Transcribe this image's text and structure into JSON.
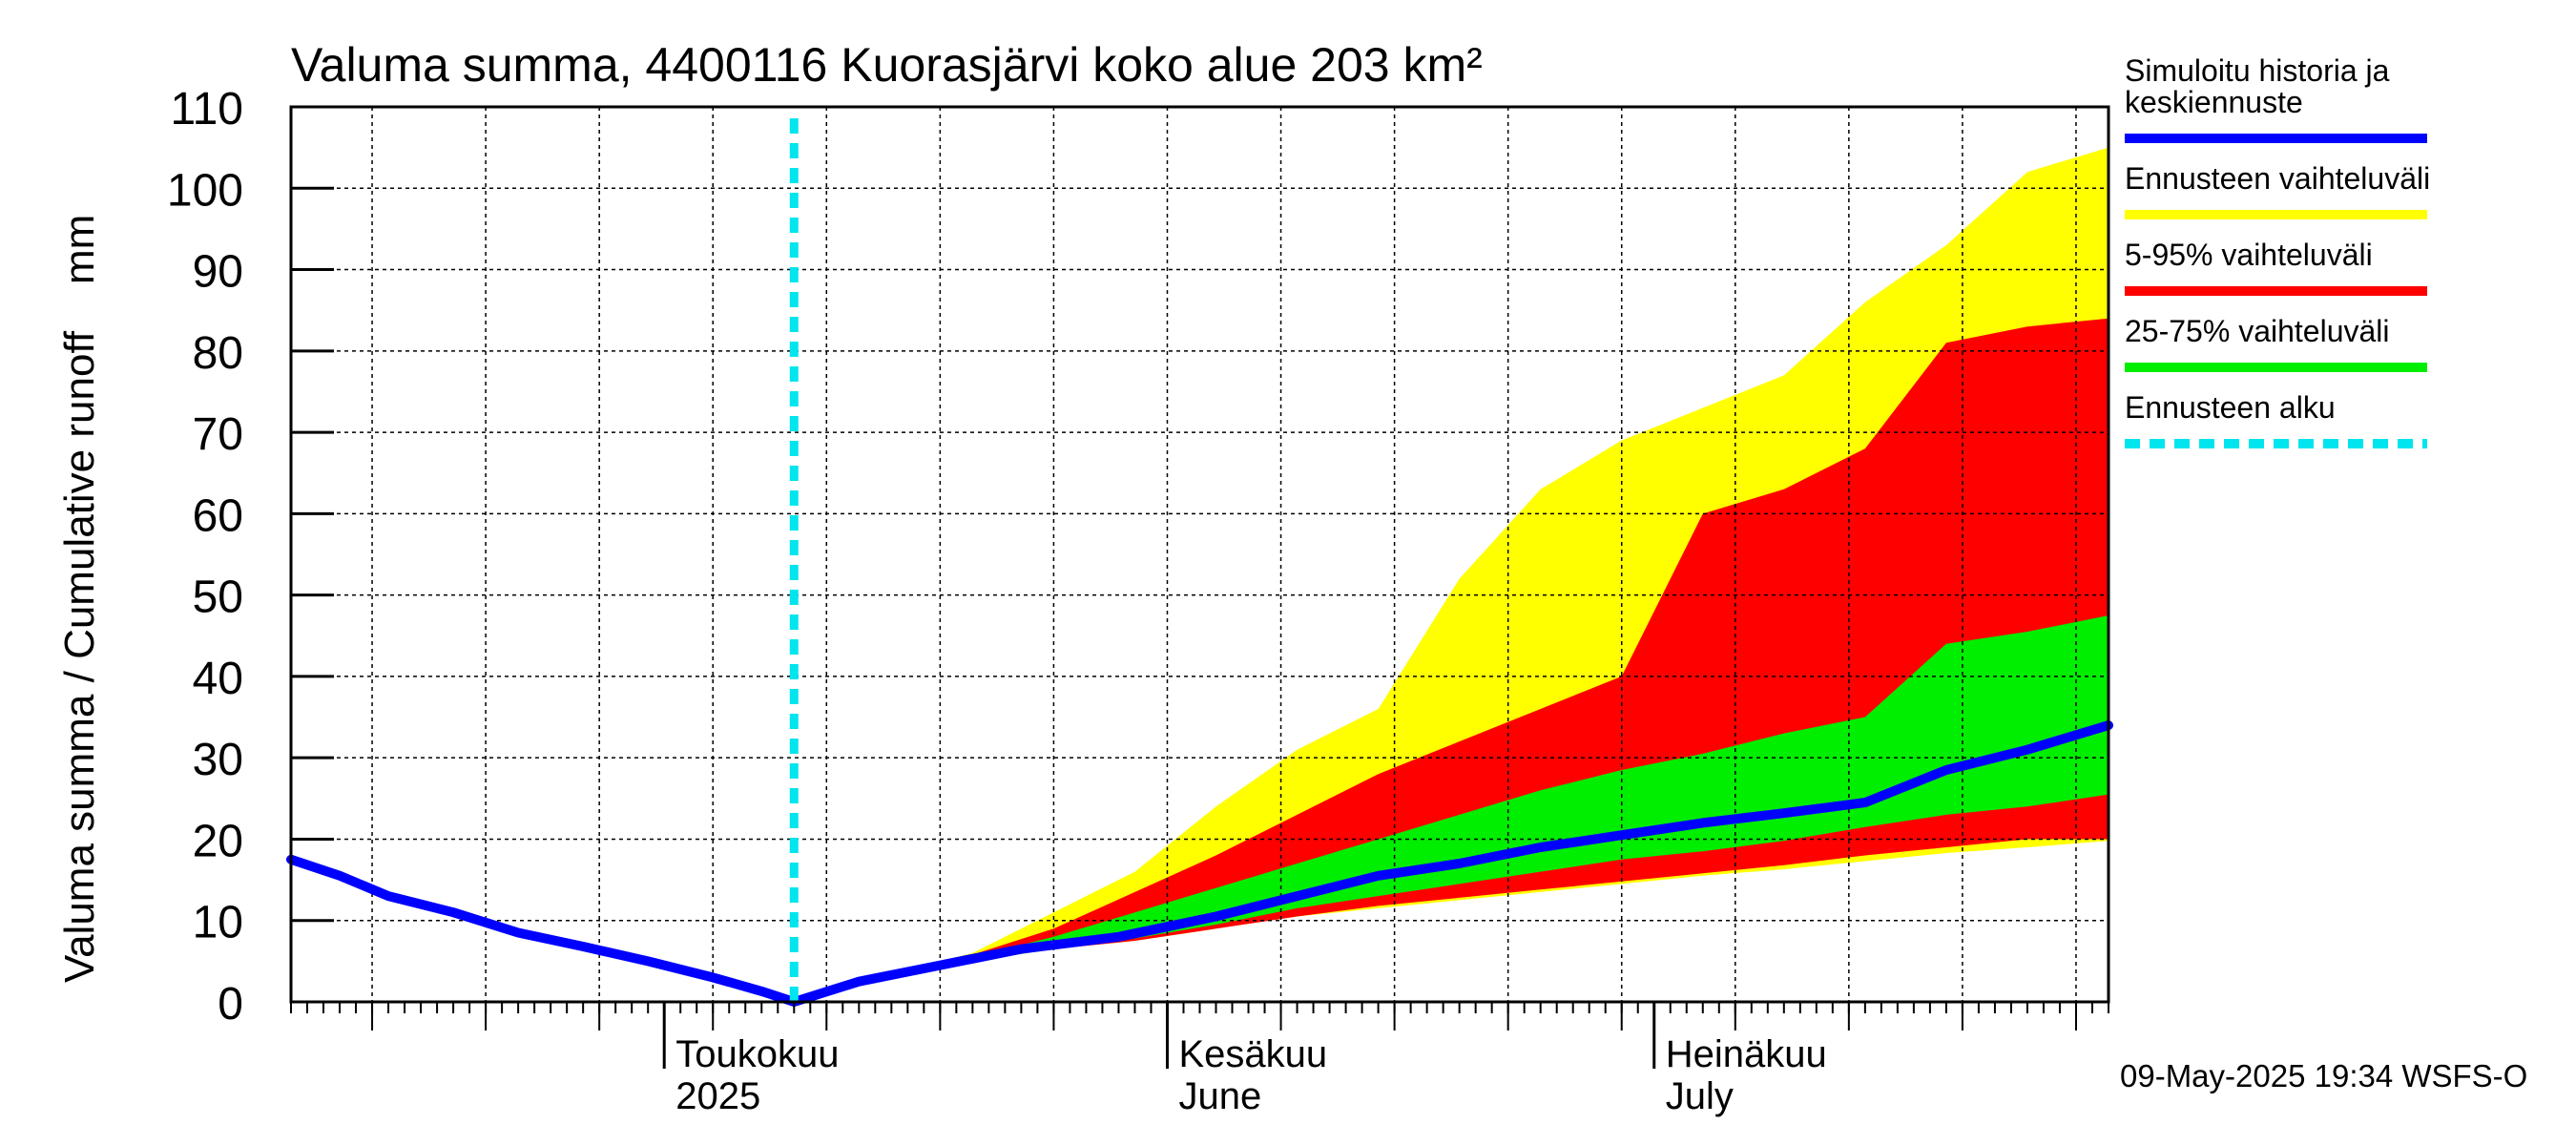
{
  "chart_data": {
    "type": "area",
    "title": "Valuma summa, 4400116 Kuorasjärvi koko alue 203 km²",
    "ylabel": "Valuma summa / Cumulative runoff    mm",
    "ylim": [
      0,
      110
    ],
    "yticks": [
      0,
      10,
      20,
      30,
      40,
      50,
      60,
      70,
      80,
      90,
      100,
      110
    ],
    "grid": true,
    "legend_position": "right",
    "xlim": [
      "2025-04-08",
      "2025-07-29"
    ],
    "month_labels": [
      {
        "line1": "Toukokuu",
        "line2": "2025",
        "date": "2025-05-01"
      },
      {
        "line1": "Kesäkuu",
        "line2": "June",
        "date": "2025-06-01"
      },
      {
        "line1": "Heinäkuu",
        "line2": "July",
        "date": "2025-07-01"
      }
    ],
    "forecast_start": "2025-05-09",
    "footer": "09-May-2025 19:34 WSFS-O",
    "legend": [
      {
        "label": "Simuloitu historia ja keskiennuste",
        "color": "#0000ff",
        "style": "solid"
      },
      {
        "label": "Ennusteen vaihteluväli",
        "color": "#ffff00",
        "style": "solid"
      },
      {
        "label": "5-95% vaihteluväli",
        "color": "#ff0000",
        "style": "solid"
      },
      {
        "label": "25-75% vaihteluväli",
        "color": "#00ee00",
        "style": "solid"
      },
      {
        "label": "Ennusteen alku",
        "color": "#00e5ee",
        "style": "dashed"
      }
    ],
    "series": [
      {
        "name": "Simuloitu historia ja keskiennuste",
        "color": "#0000ff",
        "x": [
          "2025-04-08",
          "2025-04-11",
          "2025-04-14",
          "2025-04-18",
          "2025-04-22",
          "2025-04-26",
          "2025-04-30",
          "2025-05-04",
          "2025-05-07",
          "2025-05-09",
          "2025-05-13",
          "2025-05-18",
          "2025-05-23",
          "2025-05-29",
          "2025-06-04",
          "2025-06-09",
          "2025-06-14",
          "2025-06-19",
          "2025-06-24",
          "2025-06-29",
          "2025-07-04",
          "2025-07-09",
          "2025-07-14",
          "2025-07-19",
          "2025-07-24",
          "2025-07-29"
        ],
        "y": [
          17.5,
          15.5,
          13,
          11,
          8.5,
          6.8,
          5,
          3,
          1.3,
          0,
          2.5,
          4.5,
          6.5,
          8,
          10.5,
          13,
          15.5,
          17,
          19,
          20.5,
          22,
          23.2,
          24.5,
          28.5,
          31,
          34
        ]
      }
    ],
    "bands": [
      {
        "name": "Ennusteen vaihteluväli",
        "color": "#ffff00",
        "x": [
          "2025-05-09",
          "2025-05-15",
          "2025-05-20",
          "2025-05-25",
          "2025-05-30",
          "2025-06-04",
          "2025-06-09",
          "2025-06-14",
          "2025-06-19",
          "2025-06-24",
          "2025-06-29",
          "2025-07-04",
          "2025-07-09",
          "2025-07-14",
          "2025-07-19",
          "2025-07-24",
          "2025-07-29"
        ],
        "lower": [
          0,
          3.5,
          5,
          6.5,
          7.5,
          9,
          10.5,
          11.5,
          12.5,
          13.5,
          14.5,
          15.5,
          16.3,
          17.3,
          18.3,
          19,
          19.8
        ],
        "upper": [
          0,
          3.5,
          6,
          11,
          16,
          24,
          31,
          36,
          52,
          63,
          69,
          73,
          77,
          86,
          93,
          102,
          105
        ]
      },
      {
        "name": "5-95% vaihteluväli",
        "color": "#ff0000",
        "x": [
          "2025-05-09",
          "2025-05-15",
          "2025-05-20",
          "2025-05-25",
          "2025-05-30",
          "2025-06-04",
          "2025-06-09",
          "2025-06-14",
          "2025-06-19",
          "2025-06-24",
          "2025-06-29",
          "2025-07-04",
          "2025-07-09",
          "2025-07-14",
          "2025-07-19",
          "2025-07-24",
          "2025-07-29"
        ],
        "lower": [
          0,
          3.5,
          5,
          6.5,
          7.5,
          9,
          10.5,
          11.8,
          12.8,
          13.8,
          14.8,
          15.8,
          16.8,
          18,
          19,
          20,
          20
        ],
        "upper": [
          0,
          3.6,
          5.8,
          9,
          13.5,
          18,
          23,
          28,
          32,
          36,
          40,
          60,
          63,
          68,
          81,
          83,
          84
        ]
      },
      {
        "name": "25-75% vaihteluväli",
        "color": "#00ee00",
        "x": [
          "2025-05-09",
          "2025-05-15",
          "2025-05-20",
          "2025-05-25",
          "2025-05-30",
          "2025-06-04",
          "2025-06-09",
          "2025-06-14",
          "2025-06-19",
          "2025-06-24",
          "2025-06-29",
          "2025-07-04",
          "2025-07-09",
          "2025-07-14",
          "2025-07-19",
          "2025-07-24",
          "2025-07-29"
        ],
        "lower": [
          0,
          3.5,
          5,
          6.5,
          7.8,
          9.5,
          11.5,
          13,
          14.5,
          16,
          17.5,
          18.5,
          19.8,
          21.5,
          23,
          24,
          25.5
        ],
        "upper": [
          0,
          3.6,
          5.5,
          8,
          11,
          14,
          17,
          20,
          23,
          26,
          28.5,
          30.5,
          33,
          35,
          44,
          45.5,
          47.5
        ]
      }
    ]
  }
}
